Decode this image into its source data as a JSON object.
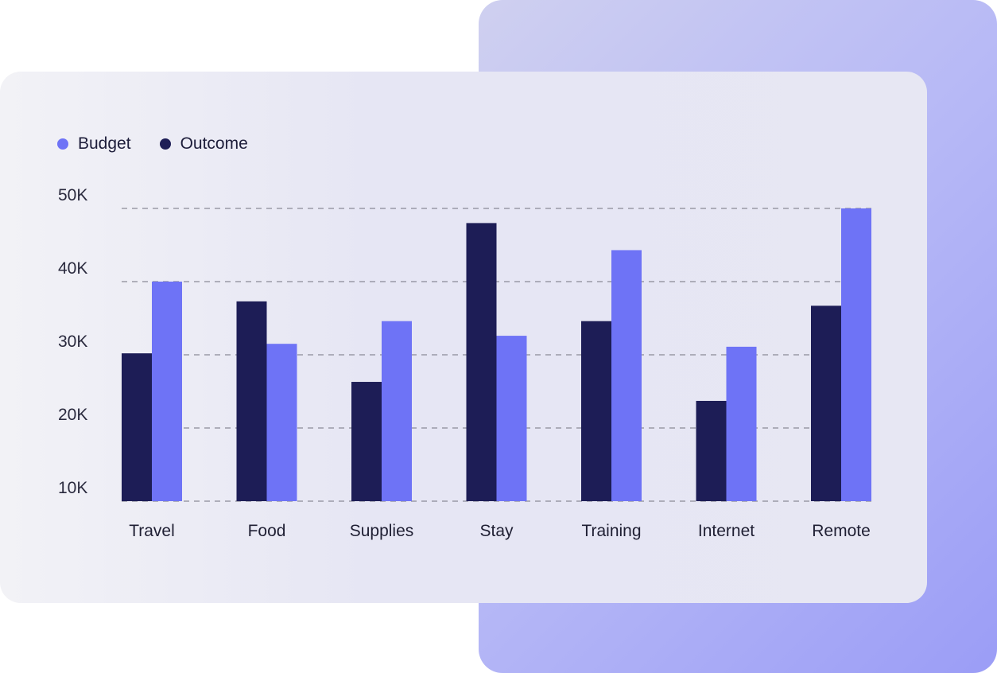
{
  "colors": {
    "budget": "#6e73f6",
    "outcome": "#1d1d56",
    "grid": "#8a8a96"
  },
  "legend": {
    "budget_label": "Budget",
    "outcome_label": "Outcome"
  },
  "chart_data": {
    "type": "bar",
    "categories": [
      "Travel",
      "Food",
      "Supplies",
      "Stay",
      "Training",
      "Internet",
      "Remote"
    ],
    "series": [
      {
        "name": "Outcome",
        "values": [
          30200,
          37300,
          26300,
          48000,
          34600,
          23700,
          36700
        ]
      },
      {
        "name": "Budget",
        "values": [
          40000,
          31500,
          34600,
          32600,
          44300,
          31100,
          50000
        ]
      }
    ],
    "yticks": [
      "10K",
      "20K",
      "30K",
      "40K",
      "50K"
    ],
    "ylim": [
      10000,
      50000
    ],
    "grid": true,
    "legend_position": "top-left"
  }
}
